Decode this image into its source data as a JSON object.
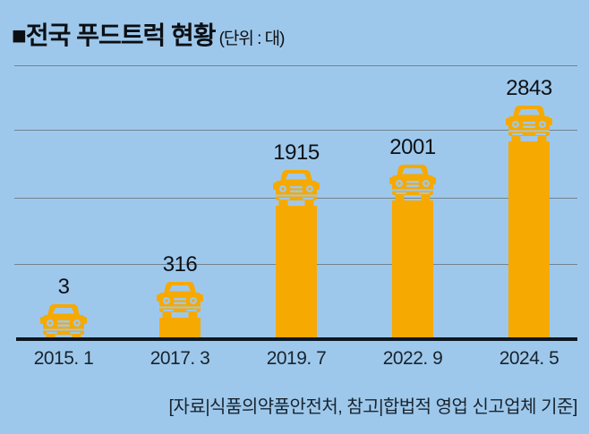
{
  "title": {
    "bullet": "■",
    "text": "전국 푸드트럭 현황",
    "unit": "(단위 : 대)"
  },
  "source": "[자료|식품의약품안전처, 참고|합법적 영업 신고업체 기준]",
  "colors": {
    "background": "#9EC8EB",
    "bar": "#F6A900",
    "gridline": "#73828F",
    "axis": "#0C1722",
    "text": "#0B0F14"
  },
  "chart_data": {
    "type": "bar",
    "title": "전국 푸드트럭 현황",
    "unit": "대",
    "categories": [
      "2015. 1",
      "2017. 3",
      "2019. 7",
      "2022. 9",
      "2024. 5"
    ],
    "values": [
      3,
      316,
      1915,
      2001,
      2843
    ],
    "value_labels": [
      "3",
      "316",
      "1915",
      "2001",
      "2843"
    ],
    "xlabel": "",
    "ylabel": "",
    "ylim": [
      0,
      2900
    ],
    "grid": "horizontal unlabeled gridlines",
    "legend": "none",
    "bar_icon": "food-truck-front-view",
    "annotation": "each bar topped with an orange food-truck pictogram; values printed above each truck"
  }
}
